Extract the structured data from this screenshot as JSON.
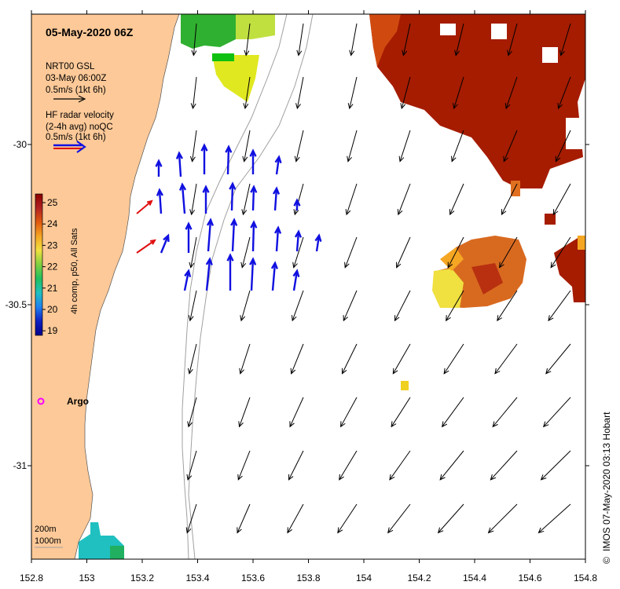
{
  "title": "05-May-2020 06Z",
  "legend": {
    "gsl_title": "NRT00 GSL",
    "gsl_date": "03-May 06:00Z",
    "gsl_scale": "0.5m/s (1kt 6h)",
    "hf_line1": "HF radar velocity",
    "hf_line2": "(2-4h avg) noQC",
    "hf_scale": "0.5m/s (1kt 6h)"
  },
  "colorbar": {
    "label": "4h comp, p50, All Sats",
    "ticks": [
      "25",
      "24",
      "23",
      "22",
      "21",
      "20",
      "19"
    ],
    "colors": [
      "#8b0000",
      "#b22222",
      "#e05a10",
      "#f5a623",
      "#f0e040",
      "#7fd040",
      "#20c060",
      "#20c0c0",
      "#2080f0",
      "#1020c0",
      "#00008b"
    ]
  },
  "bathymetry": {
    "contour_200": "200m",
    "contour_1000": "1000m"
  },
  "markers": {
    "argo_label": "Argo",
    "argo_color": "#ff00ff"
  },
  "axes": {
    "x_ticks": [
      "152.8",
      "153",
      "153.2",
      "153.4",
      "153.6",
      "153.8",
      "154",
      "154.2",
      "154.4",
      "154.6",
      "154.8"
    ],
    "y_ticks": [
      "-30",
      "-30.5",
      "-31"
    ]
  },
  "credit": "IMOS 07-May-2020 03:13 Hobart",
  "colors": {
    "land": "#fdc998",
    "hf_arrow": "#1010e0",
    "hf_coastal": "#e01010",
    "gsl_arrow": "#000000",
    "contour": "#a0a0a0"
  }
}
